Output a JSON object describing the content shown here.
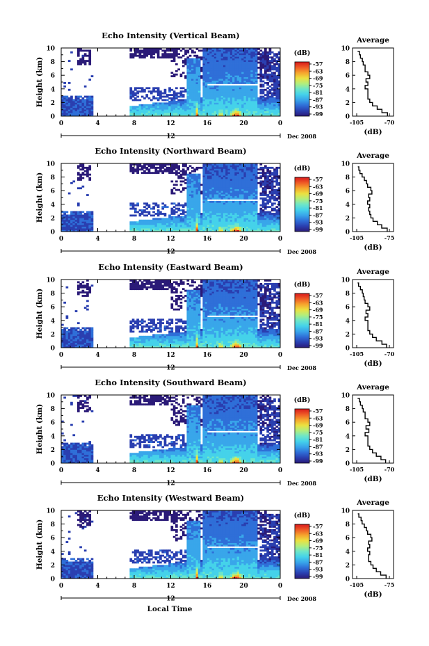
{
  "figure": {
    "x_axis_label": "Local Time",
    "date_label": "Dec 2008",
    "noon_label": "12",
    "cbar_unit": "(dB)",
    "avg_title": "Average",
    "avg_xlabel": "(dB)",
    "y_axis_label": "Height (km)"
  },
  "chart_data": [
    {
      "type": "heatmap",
      "title": "Echo Intensity (Vertical Beam)",
      "xlabel": "",
      "ylabel": "Height (km)",
      "x_ticks": [
        "0",
        "4",
        "8",
        "12",
        "16",
        "20",
        "0"
      ],
      "y_ticks": [
        "0",
        "2",
        "4",
        "6",
        "8",
        "10"
      ],
      "xlim": [
        0,
        24
      ],
      "ylim": [
        0,
        10
      ],
      "colorbar": {
        "unit": "(dB)",
        "ticks": [
          "-57",
          "-63",
          "-69",
          "-75",
          "-81",
          "-87",
          "-93",
          "-99"
        ]
      },
      "average_profile": {
        "title": "Average",
        "xlabel": "(dB)",
        "x_ticks": [
          "-105",
          "-70"
        ],
        "xlim": [
          -105,
          -70
        ],
        "y_ticks": [
          "0",
          "2",
          "4",
          "6",
          "8",
          "10"
        ],
        "height": [
          0,
          0.5,
          1,
          1.5,
          2,
          2.5,
          3,
          3.5,
          4,
          4.5,
          5,
          5.5,
          6,
          6.5,
          7,
          7.5,
          8,
          8.5,
          9,
          9.5
        ],
        "db": [
          -72,
          -78,
          -83,
          -88,
          -91,
          -93,
          -93,
          -93,
          -96,
          -93,
          -95,
          -91,
          -93,
          -96,
          -96,
          -98,
          -99,
          -101,
          -102,
          -104
        ]
      }
    },
    {
      "type": "heatmap",
      "title": "Echo Intensity (Northward Beam)",
      "xlabel": "",
      "ylabel": "Height (km)",
      "x_ticks": [
        "0",
        "4",
        "8",
        "12",
        "16",
        "20",
        "0"
      ],
      "y_ticks": [
        "0",
        "2",
        "4",
        "6",
        "8",
        "10"
      ],
      "xlim": [
        0,
        24
      ],
      "ylim": [
        0,
        10
      ],
      "colorbar": {
        "unit": "(dB)",
        "ticks": [
          "-57",
          "-63",
          "-69",
          "-75",
          "-81",
          "-87",
          "-93",
          "-99"
        ]
      },
      "average_profile": {
        "title": "Average",
        "xlabel": "(dB)",
        "x_ticks": [
          "-105",
          "-75"
        ],
        "xlim": [
          -105,
          -75
        ],
        "y_ticks": [
          "0",
          "2",
          "4",
          "6",
          "8",
          "10"
        ],
        "height": [
          0,
          0.5,
          1,
          1.5,
          2,
          2.5,
          3,
          3.5,
          4,
          4.5,
          5,
          5.5,
          6,
          6.5,
          7,
          7.5,
          8,
          8.5,
          9,
          9.5
        ],
        "db": [
          -77,
          -82,
          -86,
          -90,
          -92,
          -93,
          -94,
          -93,
          -95,
          -93,
          -94,
          -91,
          -92,
          -95,
          -96,
          -98,
          -100,
          -102,
          -103,
          -104
        ]
      }
    },
    {
      "type": "heatmap",
      "title": "Echo Intensity (Eastward Beam)",
      "xlabel": "",
      "ylabel": "Height (km)",
      "x_ticks": [
        "0",
        "4",
        "8",
        "12",
        "16",
        "20",
        "0"
      ],
      "y_ticks": [
        "0",
        "2",
        "4",
        "6",
        "8",
        "10"
      ],
      "xlim": [
        0,
        24
      ],
      "ylim": [
        0,
        10
      ],
      "colorbar": {
        "unit": "(dB)",
        "ticks": [
          "-57",
          "-63",
          "-69",
          "-75",
          "-81",
          "-87",
          "-93",
          "-99"
        ]
      },
      "average_profile": {
        "title": "Average",
        "xlabel": "(dB)",
        "x_ticks": [
          "-105",
          "-70"
        ],
        "xlim": [
          -105,
          -70
        ],
        "y_ticks": [
          "0",
          "2",
          "4",
          "6",
          "8",
          "10"
        ],
        "height": [
          0,
          0.5,
          1,
          1.5,
          2,
          2.5,
          3,
          3.5,
          4,
          4.5,
          5,
          5.5,
          6,
          6.5,
          7,
          7.5,
          8,
          8.5,
          9,
          9.5
        ],
        "db": [
          -73,
          -78,
          -84,
          -88,
          -91,
          -93,
          -93,
          -93,
          -96,
          -93,
          -95,
          -91,
          -93,
          -96,
          -97,
          -98,
          -99,
          -101,
          -103,
          -104
        ]
      }
    },
    {
      "type": "heatmap",
      "title": "Echo Intensity (Southward Beam)",
      "xlabel": "",
      "ylabel": "Height (km)",
      "x_ticks": [
        "0",
        "4",
        "8",
        "12",
        "16",
        "20",
        "0"
      ],
      "y_ticks": [
        "0",
        "2",
        "4",
        "6",
        "8",
        "10"
      ],
      "xlim": [
        0,
        24
      ],
      "ylim": [
        0,
        10
      ],
      "colorbar": {
        "unit": "(dB)",
        "ticks": [
          "-57",
          "-63",
          "-69",
          "-75",
          "-81",
          "-87",
          "-93",
          "-99"
        ]
      },
      "average_profile": {
        "title": "Average",
        "xlabel": "(dB)",
        "x_ticks": [
          "-105",
          "-70"
        ],
        "xlim": [
          -105,
          -70
        ],
        "y_ticks": [
          "0",
          "2",
          "4",
          "6",
          "8",
          "10"
        ],
        "height": [
          0,
          0.5,
          1,
          1.5,
          2,
          2.5,
          3,
          3.5,
          4,
          4.5,
          5,
          5.5,
          6,
          6.5,
          7,
          7.5,
          8,
          8.5,
          9,
          9.5
        ],
        "db": [
          -74,
          -79,
          -84,
          -88,
          -91,
          -93,
          -93,
          -93,
          -96,
          -92,
          -95,
          -91,
          -93,
          -96,
          -96,
          -98,
          -99,
          -101,
          -102,
          -104
        ]
      }
    },
    {
      "type": "heatmap",
      "title": "Echo Intensity (Westward Beam)",
      "xlabel": "Local Time",
      "ylabel": "Height (km)",
      "x_ticks": [
        "0",
        "4",
        "8",
        "12",
        "16",
        "20",
        "0"
      ],
      "y_ticks": [
        "0",
        "2",
        "4",
        "6",
        "8",
        "10"
      ],
      "xlim": [
        0,
        24
      ],
      "ylim": [
        0,
        10
      ],
      "colorbar": {
        "unit": "(dB)",
        "ticks": [
          "-57",
          "-63",
          "-69",
          "-75",
          "-81",
          "-87",
          "-93",
          "-99"
        ]
      },
      "average_profile": {
        "title": "Average",
        "xlabel": "(dB)",
        "x_ticks": [
          "-105",
          "-75"
        ],
        "xlim": [
          -105,
          -75
        ],
        "y_ticks": [
          "0",
          "2",
          "4",
          "6",
          "8",
          "10"
        ],
        "height": [
          0,
          0.5,
          1,
          1.5,
          2,
          2.5,
          3,
          3.5,
          4,
          4.5,
          5,
          5.5,
          6,
          6.5,
          7,
          7.5,
          8,
          8.5,
          9,
          9.5
        ],
        "db": [
          -78,
          -83,
          -87,
          -90,
          -92,
          -94,
          -94,
          -93,
          -95,
          -93,
          -94,
          -91,
          -92,
          -95,
          -96,
          -98,
          -100,
          -101,
          -103,
          -104
        ]
      }
    }
  ],
  "colors": {
    "scale": [
      "#2b1b78",
      "#2a3fb0",
      "#2f6fd8",
      "#39a6ea",
      "#45d2ea",
      "#6ee6c8",
      "#b3ee7c",
      "#ece040",
      "#f6a42d",
      "#ef5a26",
      "#d8191c"
    ]
  }
}
